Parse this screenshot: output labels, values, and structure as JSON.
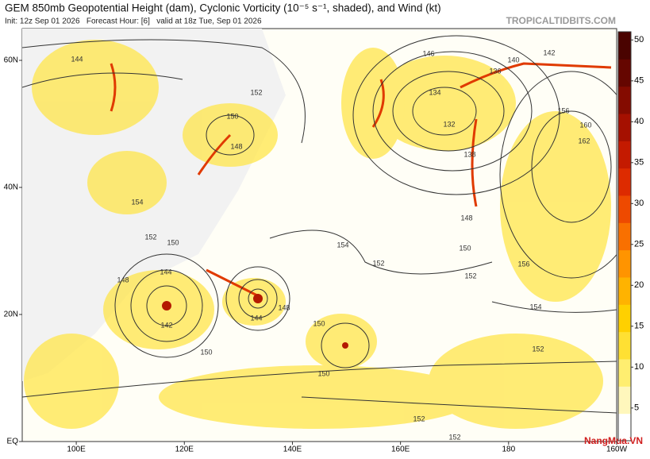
{
  "header": {
    "title": "GEM 850mb Geopotential Height (dam), Cyclonic Vorticity (10⁻⁵ s⁻¹, shaded), and Wind (kt)",
    "subtitle": "Init: 12z Sep 01 2026   Forecast Hour: [6]   valid at 18z Tue, Sep 01 2026",
    "site": "TROPICALTIDBITS.COM"
  },
  "map": {
    "xlim": [
      90,
      200
    ],
    "ylim": [
      0,
      65
    ],
    "xticks": [
      {
        "value": 100,
        "label": "100E"
      },
      {
        "value": 120,
        "label": "120E"
      },
      {
        "value": 140,
        "label": "140E"
      },
      {
        "value": 160,
        "label": "160E"
      },
      180,
      {
        "value": 200,
        "label": "160W"
      }
    ],
    "yticks": [
      {
        "value": 0,
        "label": "EQ"
      },
      {
        "value": 20,
        "label": "20N"
      },
      {
        "value": 40,
        "label": "40N"
      },
      {
        "value": 60,
        "label": "60N"
      }
    ],
    "contour_labels": [
      144,
      152,
      150,
      148,
      154,
      152,
      150,
      144,
      148,
      142,
      150,
      144,
      148,
      150,
      150,
      152,
      154,
      146,
      142,
      140,
      136,
      134,
      132,
      138,
      156,
      160,
      162,
      148,
      150,
      152,
      156,
      154,
      152,
      152,
      152
    ]
  },
  "colorbar": {
    "lim": [
      1,
      51
    ],
    "ticks": [
      5,
      10,
      15,
      20,
      25,
      30,
      35,
      40,
      45,
      50
    ],
    "colors": [
      "#ffffff",
      "#fff7bc",
      "#ffee70",
      "#ffe033",
      "#ffd000",
      "#ffb300",
      "#ff9400",
      "#f97000",
      "#ee4a00",
      "#dd2b00",
      "#c41a00",
      "#a51000",
      "#840b00",
      "#650600",
      "#4a0300"
    ]
  },
  "watermark": "NangMua.VN"
}
